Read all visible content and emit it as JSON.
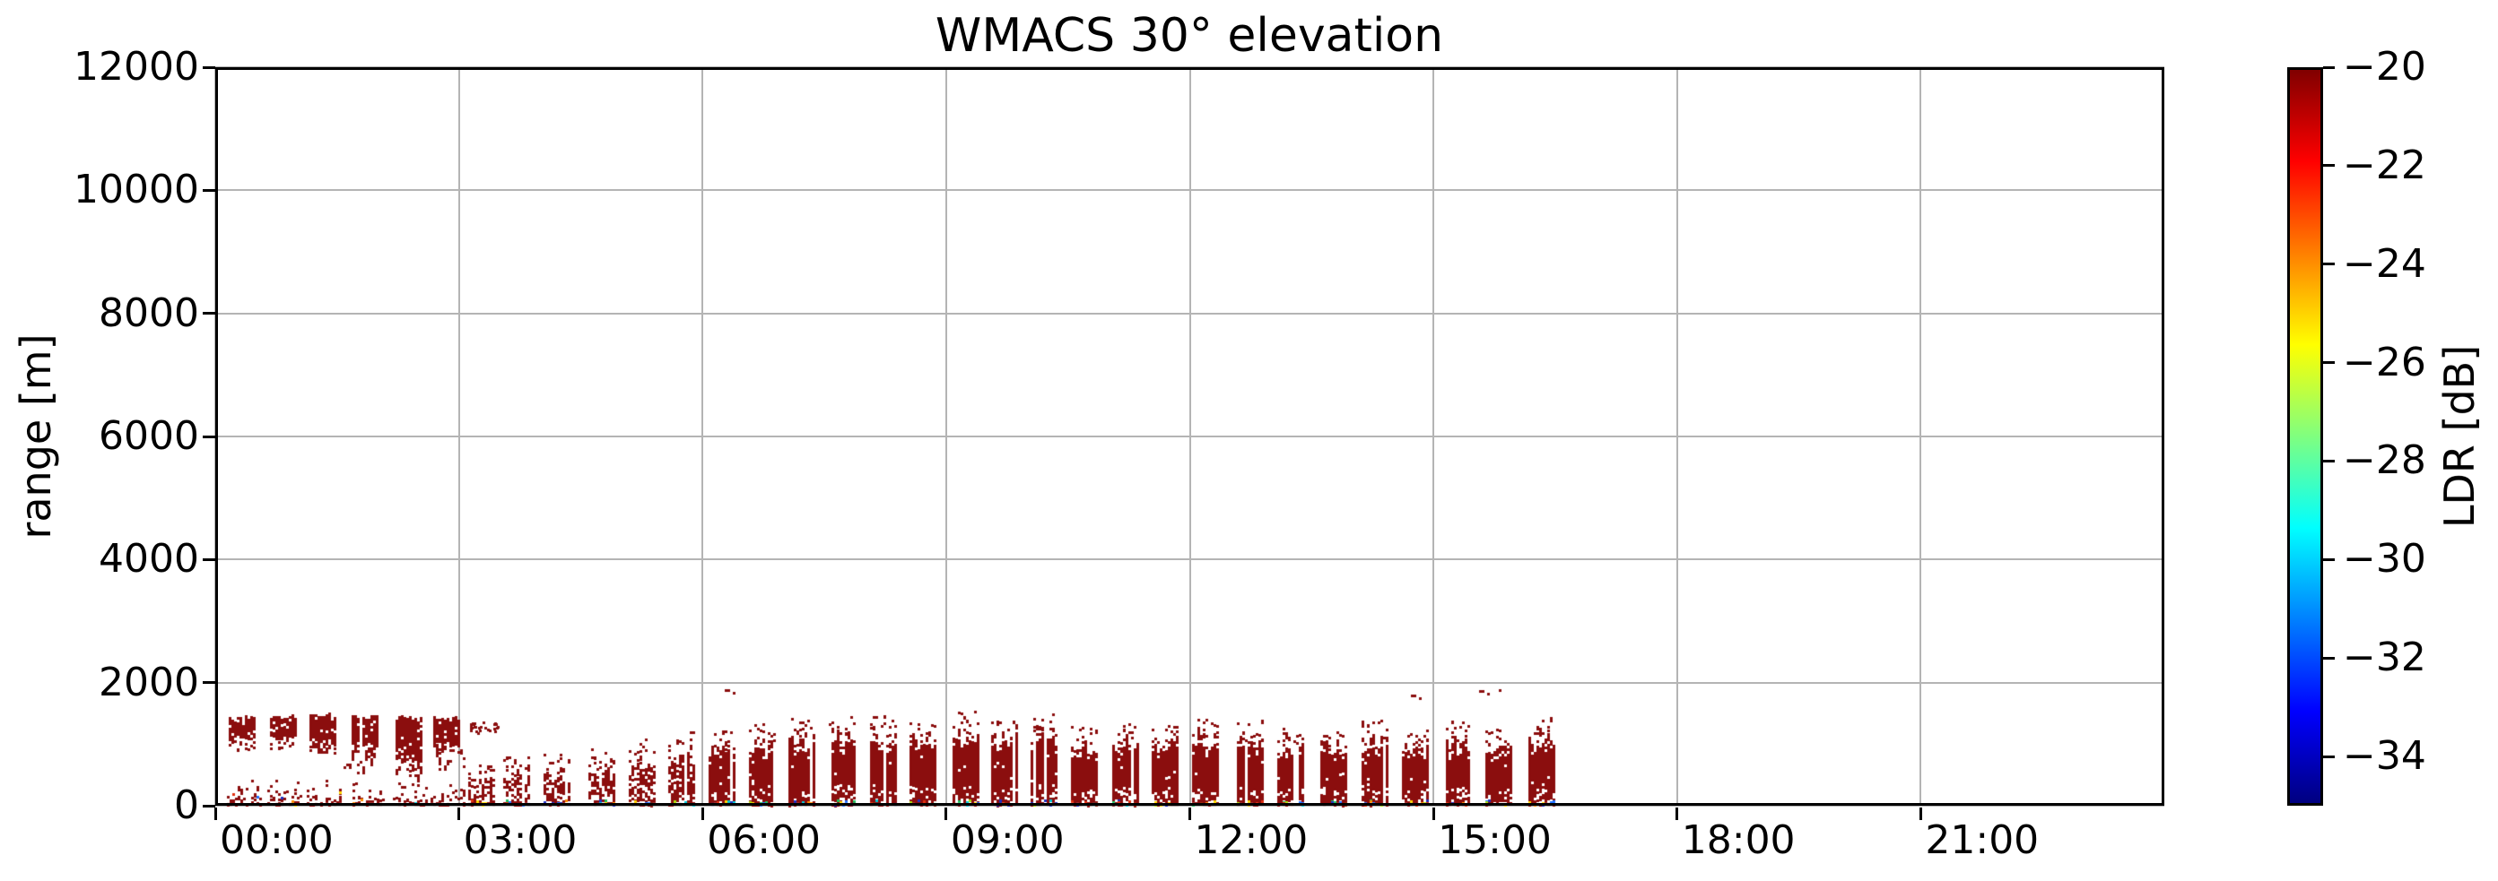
{
  "figure": {
    "background": "#ffffff",
    "text_color": "#000000",
    "grid_color": "#b4b4b4"
  },
  "chart_data": {
    "type": "heatmap",
    "title": "WMACS 30° elevation",
    "xlabel": "",
    "ylabel": "range [m]",
    "ylim": [
      0,
      12000
    ],
    "xlim_hours": [
      0,
      24
    ],
    "grid": true,
    "y_ticks": [
      {
        "value": 0,
        "label": "0"
      },
      {
        "value": 2000,
        "label": "2000"
      },
      {
        "value": 4000,
        "label": "4000"
      },
      {
        "value": 6000,
        "label": "6000"
      },
      {
        "value": 8000,
        "label": "8000"
      },
      {
        "value": 10000,
        "label": "10000"
      },
      {
        "value": 12000,
        "label": "12000"
      }
    ],
    "x_ticks": [
      {
        "hour": 0,
        "label": "00:00"
      },
      {
        "hour": 3,
        "label": "03:00"
      },
      {
        "hour": 6,
        "label": "06:00"
      },
      {
        "hour": 9,
        "label": "09:00"
      },
      {
        "hour": 12,
        "label": "12:00"
      },
      {
        "hour": 15,
        "label": "15:00"
      },
      {
        "hour": 18,
        "label": "18:00"
      },
      {
        "hour": 21,
        "label": "21:00"
      }
    ],
    "colorbar": {
      "label": "LDR [dB]",
      "vmin": -35,
      "vmax": -20,
      "colormap": "jet",
      "ticks": [
        {
          "value": -20,
          "label": "−20"
        },
        {
          "value": -22,
          "label": "−22"
        },
        {
          "value": -24,
          "label": "−24"
        },
        {
          "value": -26,
          "label": "−26"
        },
        {
          "value": -28,
          "label": "−28"
        },
        {
          "value": -30,
          "label": "−30"
        },
        {
          "value": -32,
          "label": "−32"
        },
        {
          "value": -34,
          "label": "−34"
        }
      ],
      "gradient_top_to_bottom": [
        "#800000",
        "#ff0000",
        "#ffff00",
        "#00ffff",
        "#0000ff",
        "#000080"
      ],
      "gradient_positions_pct": [
        0,
        12.5,
        37.5,
        62.5,
        87.5,
        100
      ]
    },
    "echo_color_hex": "#8b0e0e",
    "echo_value_db": -20,
    "scan_width_hours": 0.34,
    "elevated_blobs": [
      {
        "time_h": 0.34,
        "bottom_m": 1060,
        "top_m": 1480,
        "streak_to_m": null,
        "sparse": false
      },
      {
        "time_h": 0.84,
        "bottom_m": 1060,
        "top_m": 1490,
        "streak_to_m": null,
        "sparse": false
      },
      {
        "time_h": 1.33,
        "bottom_m": 1020,
        "top_m": 1530,
        "streak_to_m": 800,
        "sparse": false
      },
      {
        "time_h": 1.85,
        "bottom_m": 950,
        "top_m": 1500,
        "streak_to_m": 500,
        "sparse": false
      },
      {
        "time_h": 2.39,
        "bottom_m": 680,
        "top_m": 1480,
        "streak_to_m": 350,
        "sparse": false
      },
      {
        "time_h": 2.85,
        "bottom_m": 1000,
        "top_m": 1460,
        "streak_to_m": 600,
        "sparse": false
      },
      {
        "time_h": 3.3,
        "bottom_m": 1200,
        "top_m": 1370,
        "streak_to_m": null,
        "sparse": true
      }
    ],
    "ground_clutter": {
      "time_range_h": [
        0.2,
        3.1
      ],
      "height_range_m": [
        25,
        460
      ]
    },
    "low_columns": [
      {
        "time_h": 3.28,
        "top_m": 430,
        "density": 0.5
      },
      {
        "time_h": 3.72,
        "top_m": 520,
        "density": 0.55
      },
      {
        "time_h": 4.21,
        "top_m": 570,
        "density": 0.6
      },
      {
        "time_h": 4.76,
        "top_m": 630,
        "density": 0.6
      },
      {
        "time_h": 5.26,
        "top_m": 690,
        "density": 0.65
      },
      {
        "time_h": 5.75,
        "top_m": 780,
        "density": 0.7
      },
      {
        "time_h": 6.24,
        "top_m": 930,
        "density": 0.92
      },
      {
        "time_h": 6.74,
        "top_m": 1030,
        "density": 0.92
      },
      {
        "time_h": 7.23,
        "top_m": 1090,
        "density": 0.92
      },
      {
        "time_h": 7.73,
        "top_m": 1170,
        "density": 0.92
      },
      {
        "time_h": 8.23,
        "top_m": 1120,
        "density": 0.92
      },
      {
        "time_h": 8.72,
        "top_m": 1060,
        "density": 0.9
      },
      {
        "time_h": 9.25,
        "top_m": 1170,
        "density": 0.92
      },
      {
        "time_h": 9.72,
        "top_m": 1100,
        "density": 0.92
      },
      {
        "time_h": 10.21,
        "top_m": 1150,
        "density": 0.92
      },
      {
        "time_h": 10.71,
        "top_m": 980,
        "density": 0.9
      },
      {
        "time_h": 11.21,
        "top_m": 1030,
        "density": 0.9
      },
      {
        "time_h": 11.7,
        "top_m": 1040,
        "density": 0.9
      },
      {
        "time_h": 12.2,
        "top_m": 1120,
        "density": 0.92
      },
      {
        "time_h": 12.75,
        "top_m": 1070,
        "density": 0.92
      },
      {
        "time_h": 13.25,
        "top_m": 1010,
        "density": 0.9
      },
      {
        "time_h": 13.78,
        "top_m": 960,
        "density": 0.9
      },
      {
        "time_h": 14.28,
        "top_m": 1070,
        "density": 0.92
      },
      {
        "time_h": 14.78,
        "top_m": 970,
        "density": 0.9
      },
      {
        "time_h": 15.29,
        "top_m": 1060,
        "density": 0.92
      },
      {
        "time_h": 15.81,
        "top_m": 960,
        "density": 0.9
      },
      {
        "time_h": 16.34,
        "top_m": 1100,
        "density": 0.92
      }
    ],
    "isolated_dots": [
      {
        "time_h": 6.27,
        "range_m": 1900
      },
      {
        "time_h": 14.72,
        "range_m": 1800
      },
      {
        "time_h": 15.56,
        "range_m": 1880
      },
      {
        "time_h": 15.8,
        "range_m": 1900
      }
    ]
  }
}
